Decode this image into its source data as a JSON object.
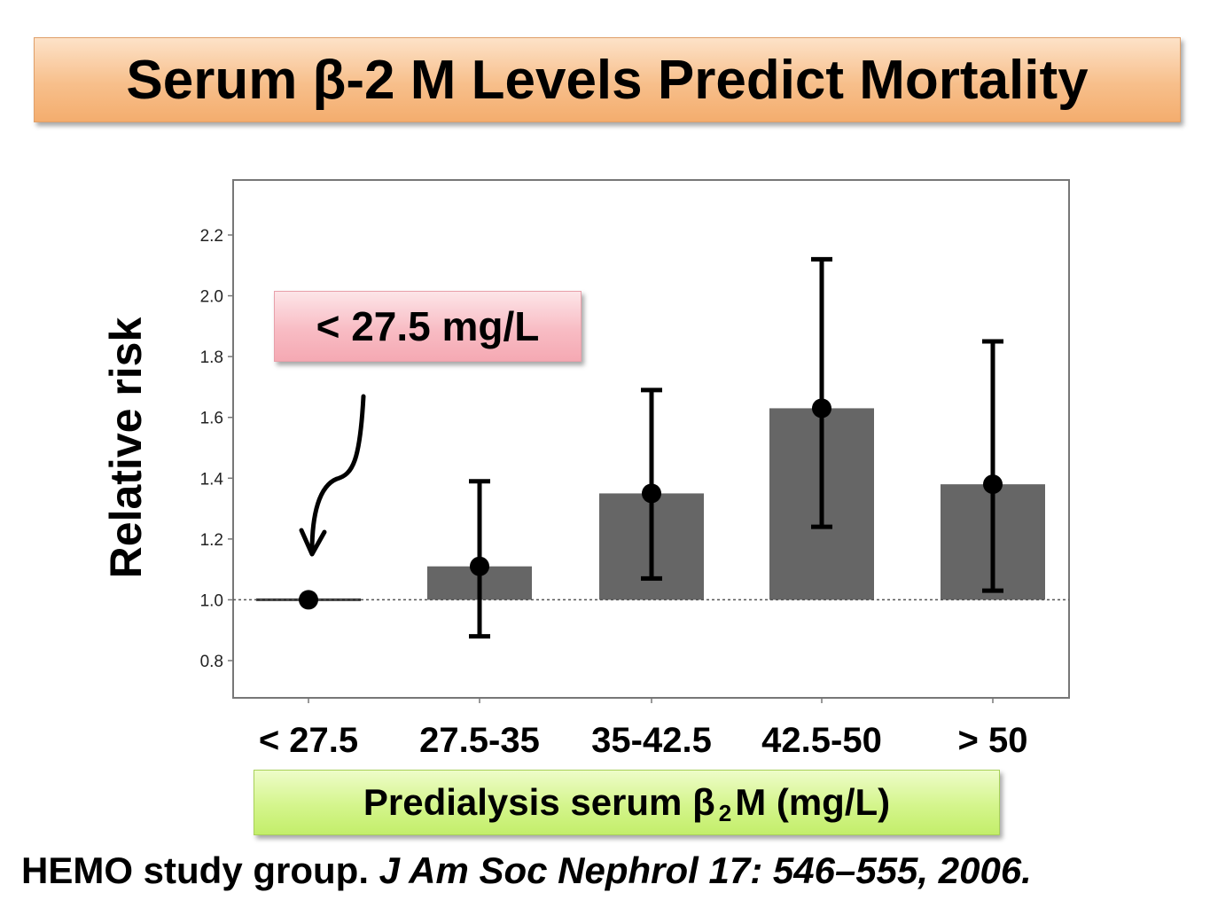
{
  "title": "Serum β-2 M Levels Predict Mortality",
  "callout": "< 27.5 mg/L",
  "xlabel": {
    "prefix": "Predialysis serum β",
    "subscript": "2",
    "suffix": "M (mg/L)"
  },
  "citation": {
    "authors": "HEMO study group.",
    "journal": "J Am Soc Nephrol 17: 546–555, 2006."
  },
  "colors": {
    "bar": "#666666",
    "title_box": "#f7bf8b",
    "callout_box": "#f8bcc4",
    "xlabel_box": "#d4f58c"
  },
  "chart_data": {
    "type": "bar",
    "ylabel": "Relative risk",
    "categories": [
      "< 27.5",
      "27.5-35",
      "35-42.5",
      "42.5-50",
      "> 50"
    ],
    "values": [
      1.0,
      1.11,
      1.35,
      1.63,
      1.38
    ],
    "ci_low": [
      1.0,
      0.88,
      1.07,
      1.24,
      1.03
    ],
    "ci_high": [
      1.0,
      1.39,
      1.69,
      2.12,
      1.85
    ],
    "reference_line": 1.0,
    "yticks": [
      "0.8",
      "1.0",
      "1.2",
      "1.4",
      "1.6",
      "1.8",
      "2.0",
      "2.2"
    ],
    "ylim": [
      0.7,
      2.32
    ],
    "grid": false
  }
}
